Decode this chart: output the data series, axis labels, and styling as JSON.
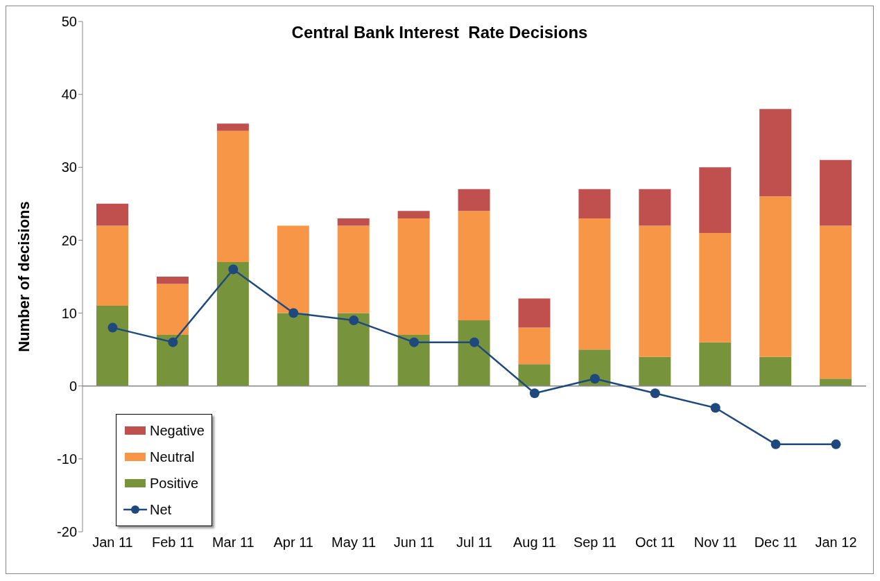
{
  "chart_data": {
    "type": "bar",
    "title": "Central Bank Interest  Rate Decisions",
    "ylabel": "Number of decisions",
    "categories": [
      "Jan 11",
      "Feb 11",
      "Mar 11",
      "Apr 11",
      "May 11",
      "Jun 11",
      "Jul 11",
      "Aug 11",
      "Sep 11",
      "Oct 11",
      "Nov 11",
      "Dec 11",
      "Jan 12"
    ],
    "series": [
      {
        "name": "Positive",
        "color": "#77933c",
        "values": [
          11,
          7,
          17,
          10,
          10,
          7,
          9,
          3,
          5,
          4,
          6,
          4,
          1
        ]
      },
      {
        "name": "Neutral",
        "color": "#f79646",
        "values": [
          11,
          7,
          18,
          12,
          12,
          16,
          15,
          5,
          18,
          18,
          15,
          22,
          21
        ]
      },
      {
        "name": "Negative",
        "color": "#c0504d",
        "values": [
          3,
          1,
          1,
          0,
          1,
          1,
          3,
          4,
          4,
          5,
          9,
          12,
          9
        ]
      },
      {
        "name": "Net",
        "type": "line",
        "color": "#1f497d",
        "values": [
          8,
          6,
          16,
          10,
          9,
          6,
          6,
          -1,
          1,
          -1,
          -3,
          -8,
          -8
        ]
      }
    ],
    "stacked": true,
    "ylim": [
      -20,
      50
    ],
    "yticks": [
      -20,
      -10,
      0,
      10,
      20,
      30,
      40,
      50
    ],
    "grid": false,
    "legend": "bottom left",
    "marker": "circle",
    "line_style": "solid",
    "ref_lines": [
      {
        "axis": "y",
        "value": 0,
        "color": "#868686"
      }
    ]
  }
}
